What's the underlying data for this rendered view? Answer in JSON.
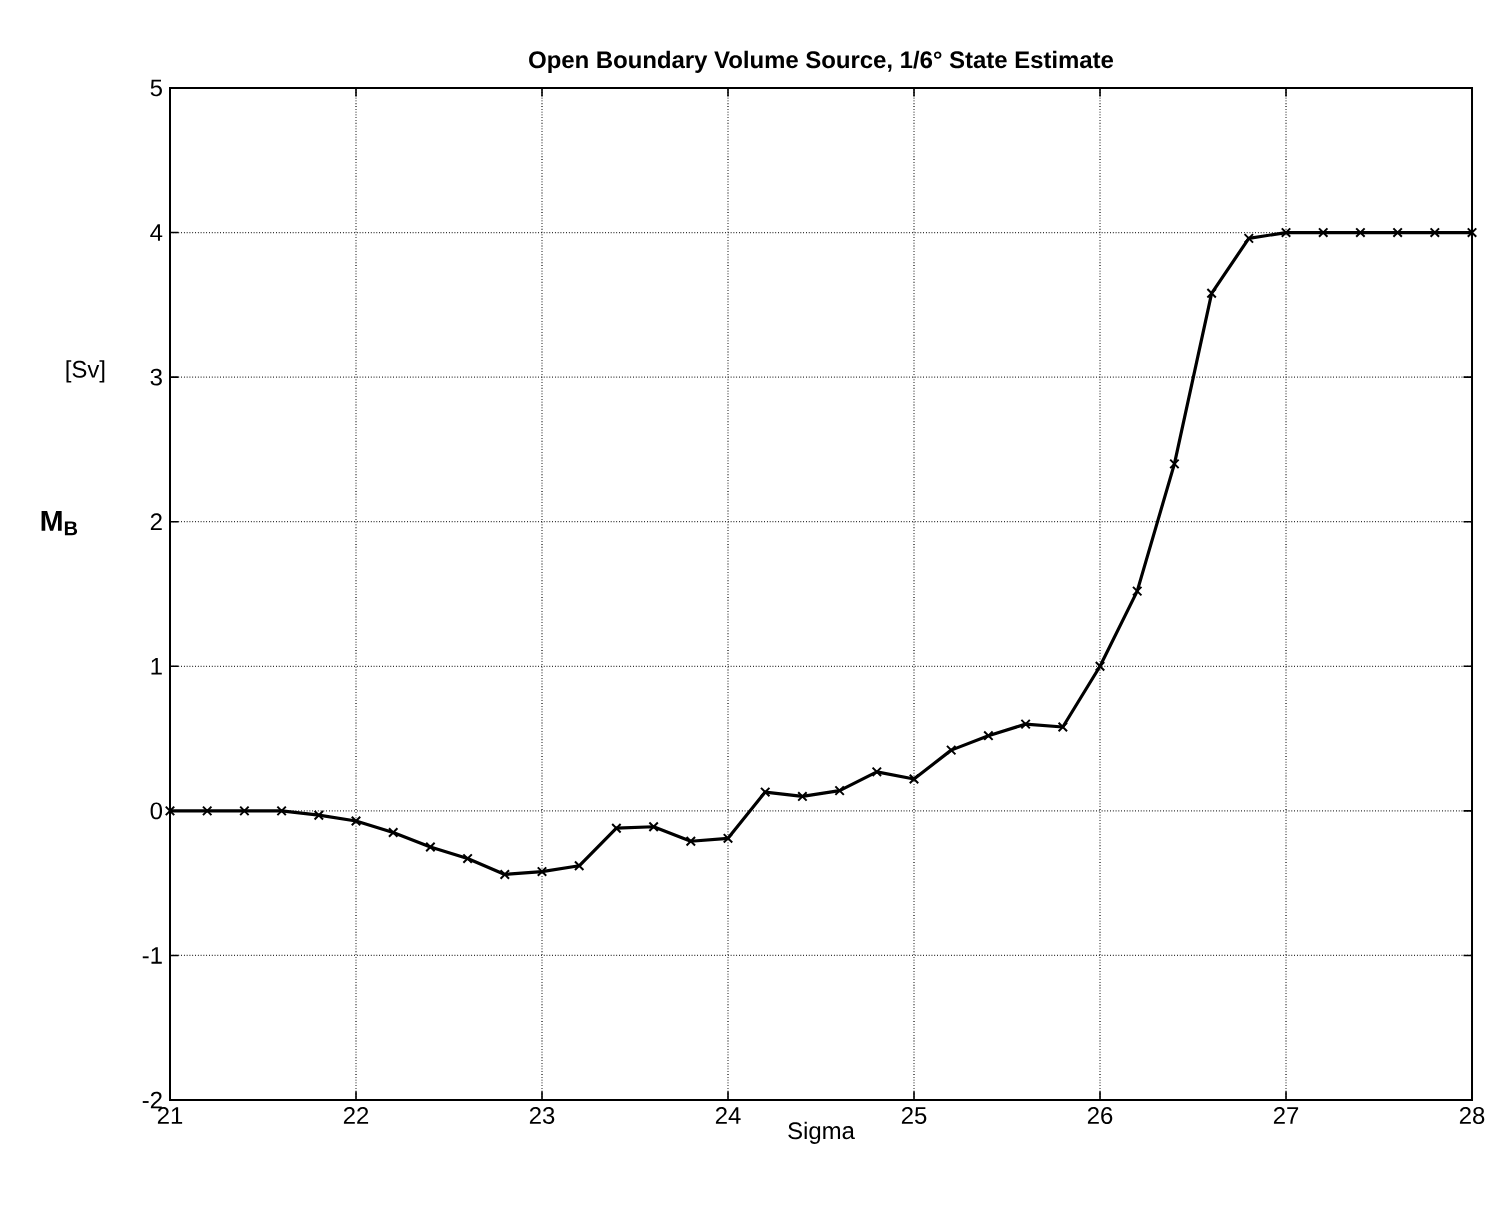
{
  "chart_data": {
    "type": "line",
    "title": "Open Boundary Volume Source, 1/6° State Estimate",
    "xlabel": "Sigma",
    "ylabel": "M$_{B}$",
    "annotations": [
      "[Sv]"
    ],
    "x": [
      21,
      21.2,
      21.4,
      21.6,
      21.8,
      22,
      22.2,
      22.4,
      22.6,
      22.8,
      23,
      23.2,
      23.4,
      23.6,
      23.8,
      24,
      24.2,
      24.4,
      24.6,
      24.8,
      25,
      25.2,
      25.4,
      25.6,
      25.8,
      26,
      26.2,
      26.4,
      26.6,
      26.8,
      27,
      27.2,
      27.4,
      27.6,
      27.8,
      28
    ],
    "series": [
      {
        "color": "#000000",
        "values": [
          0,
          0,
          0,
          0,
          -0.03,
          -0.07,
          -0.15,
          -0.25,
          -0.33,
          -0.44,
          -0.42,
          -0.38,
          -0.12,
          -0.11,
          -0.21,
          -0.19,
          0.13,
          0.1,
          0.14,
          0.27,
          0.22,
          0.42,
          0.52,
          0.6,
          0.58,
          1.0,
          1.52,
          2.4,
          3.58,
          3.96,
          4.0,
          4.0,
          4.0,
          4.0,
          4.0,
          4.0
        ]
      }
    ],
    "xlim": [
      21,
      28
    ],
    "ylim": [
      -2,
      5
    ],
    "xticks": [
      21,
      22,
      23,
      24,
      25,
      26,
      27,
      28
    ],
    "yticks": [
      -2,
      -1,
      0,
      1,
      2,
      3,
      4,
      5
    ],
    "grid": true,
    "marker": "cross",
    "line_style": "solid"
  }
}
